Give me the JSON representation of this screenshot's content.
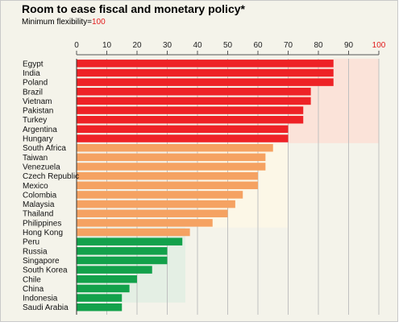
{
  "header": {
    "title": "Room to ease fiscal and monetary policy*",
    "subtitle_label": "Minimum flexibility=",
    "subtitle_value": "100"
  },
  "colors": {
    "high": "#ee2226",
    "medium": "#f5a262",
    "low": "#13a14b",
    "band_high": "#fbe3d9",
    "band_medium": "#fcf7e7",
    "band_low": "#e4efe4",
    "grid": "#c0c0c0",
    "tick_100": "#e21b1b"
  },
  "chart_data": {
    "type": "bar",
    "orientation": "horizontal",
    "title": "Room to ease fiscal and monetary policy*",
    "subtitle": "Minimum flexibility=100",
    "xlim": [
      0,
      100
    ],
    "xticks": [
      0,
      10,
      20,
      30,
      40,
      50,
      60,
      70,
      80,
      90,
      100
    ],
    "grid": true,
    "bands": [
      {
        "from": 70,
        "to": 100,
        "rows_from": 0,
        "rows_to": 8,
        "color": "band_high"
      },
      {
        "from": 40,
        "to": 70,
        "rows_from": 9,
        "rows_to": 17,
        "color": "band_medium"
      },
      {
        "from": 0,
        "to": 36,
        "rows_from": 18,
        "rows_to": 25,
        "color": "band_low"
      }
    ],
    "categories": [
      "Egypt",
      "India",
      "Poland",
      "Brazil",
      "Vietnam",
      "Pakistan",
      "Turkey",
      "Argentina",
      "Hungary",
      "South Africa",
      "Taiwan",
      "Venezuela",
      "Czech Republic",
      "Mexico",
      "Colombia",
      "Malaysia",
      "Thailand",
      "Philippines",
      "Hong Kong",
      "Peru",
      "Russia",
      "Singapore",
      "South Korea",
      "Chile",
      "China",
      "Indonesia",
      "Saudi Arabia"
    ],
    "values": [
      85,
      85,
      85,
      77.5,
      77.5,
      75,
      75,
      70,
      70,
      65,
      62.5,
      62.5,
      60,
      60,
      55,
      52.5,
      50,
      45,
      37.5,
      35,
      30,
      30,
      25,
      20,
      17.5,
      15,
      15
    ],
    "groups": [
      "high",
      "high",
      "high",
      "high",
      "high",
      "high",
      "high",
      "high",
      "high",
      "medium",
      "medium",
      "medium",
      "medium",
      "medium",
      "medium",
      "medium",
      "medium",
      "medium",
      "medium",
      "low",
      "low",
      "low",
      "low",
      "low",
      "low",
      "low",
      "low"
    ]
  }
}
